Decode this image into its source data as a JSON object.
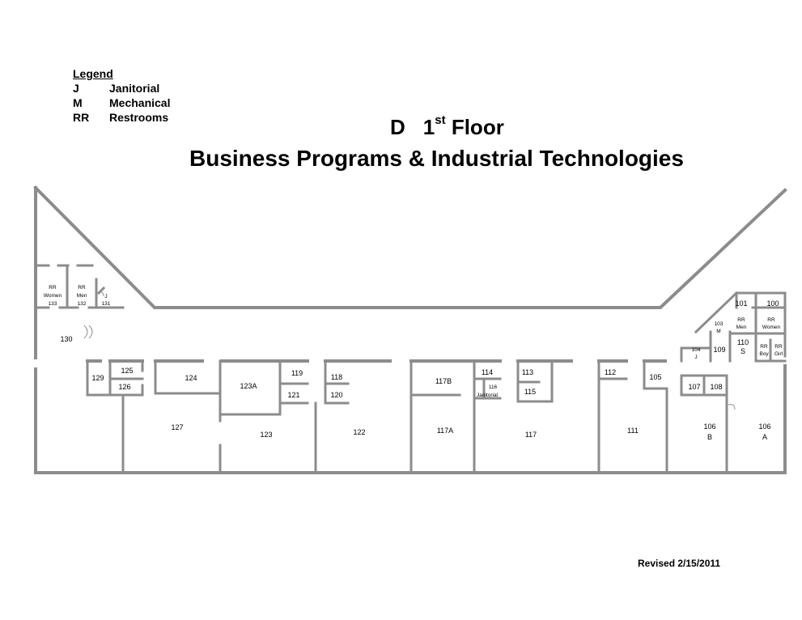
{
  "legend": {
    "title": "Legend",
    "items": [
      {
        "code": "J",
        "label": "Janitorial"
      },
      {
        "code": "M",
        "label": "Mechanical"
      },
      {
        "code": "RR",
        "label": "Restrooms"
      }
    ]
  },
  "title": {
    "building": "D",
    "floor_num": "1",
    "floor_sup": "st",
    "floor_word": "Floor",
    "subtitle": "Business Programs & Industrial Technologies"
  },
  "revised": "Revised 2/15/2011",
  "rooms": {
    "r133_a": "RR",
    "r133_b": "Women",
    "r133_c": "133",
    "r132_a": "RR",
    "r132_b": "Men",
    "r132_c": "132",
    "r131_a": "J",
    "r131_b": "131",
    "r130": "130",
    "r129": "129",
    "r125": "125",
    "r126": "126",
    "r124": "124",
    "r123a": "123A",
    "r119": "119",
    "r121": "121",
    "r118": "118",
    "r120": "120",
    "r117b": "117B",
    "r114": "114",
    "r116_a": "116",
    "r116_b": "Janitorial",
    "r113": "113",
    "r115": "115",
    "r112": "112",
    "r105": "105",
    "r101": "101",
    "r100": "100",
    "r103_a": "103",
    "r103_b": "M",
    "r102_a": "RR",
    "r102_b": "Men",
    "r99_a": "RR",
    "r99_b": "Women",
    "r104_a": "104",
    "r104_b": "J",
    "r109": "109",
    "r110_a": "110",
    "r110_b": "S",
    "rboy_a": "RR",
    "rboy_b": "Boy",
    "rgirl_a": "RR",
    "rgirl_b": "Girl",
    "r107": "107",
    "r108": "108",
    "r127": "127",
    "r123": "123",
    "r122": "122",
    "r117a": "117A",
    "r117": "117",
    "r111": "111",
    "r106b_a": "106",
    "r106b_b": "B",
    "r106a_a": "106",
    "r106a_b": "A"
  }
}
